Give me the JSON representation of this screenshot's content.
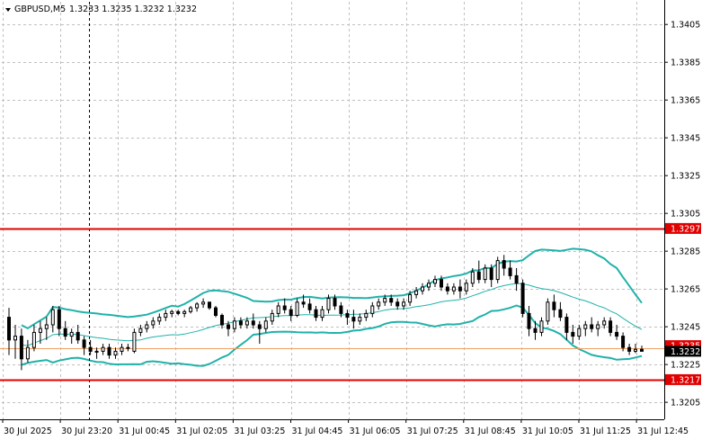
{
  "header": {
    "symbol": "GBPUSD,M5",
    "ohlc": "1.3233 1.3235 1.3232 1.3232"
  },
  "colors": {
    "background": "#ffffff",
    "grid": "#c0c0c0",
    "bands": "#20b2aa",
    "level_line": "#e00000",
    "price_line": "#f2a060",
    "candle": "#000000",
    "level_label_bg": "#e00000",
    "current_label_bg": "#000000"
  },
  "levels": [
    {
      "value": 1.3297,
      "label": "1.3297"
    },
    {
      "value": 1.3217,
      "label": "1.3217"
    }
  ],
  "current_price": {
    "value": 1.3232,
    "label": "1.3232"
  },
  "previous_price_label": "1.3235",
  "chart_data": {
    "type": "candlestick",
    "title": "GBPUSD,M5",
    "y_ticks": [
      "1.3405",
      "1.3385",
      "1.3365",
      "1.3345",
      "1.3325",
      "1.3305",
      "1.3285",
      "1.3265",
      "1.3245",
      "1.3225",
      "1.3205"
    ],
    "ylim": [
      1.3196,
      1.3417
    ],
    "x_ticks": [
      "30 Jul 2025",
      "30 Jul 23:20",
      "31 Jul 00:45",
      "31 Jul 02:05",
      "31 Jul 03:25",
      "31 Jul 04:45",
      "31 Jul 06:05",
      "31 Jul 07:25",
      "31 Jul 08:45",
      "31 Jul 10:05",
      "31 Jul 11:25",
      "31 Jul 12:45"
    ],
    "grid": true,
    "candles": [
      [
        1.325,
        1.3255,
        1.323,
        1.3238
      ],
      [
        1.3238,
        1.3246,
        1.3228,
        1.324
      ],
      [
        1.324,
        1.3244,
        1.3222,
        1.3228
      ],
      [
        1.3228,
        1.3238,
        1.3226,
        1.3234
      ],
      [
        1.3234,
        1.3246,
        1.3232,
        1.3242
      ],
      [
        1.3242,
        1.3248,
        1.3236,
        1.3244
      ],
      [
        1.3244,
        1.325,
        1.3238,
        1.3246
      ],
      [
        1.3246,
        1.3256,
        1.3242,
        1.3254
      ],
      [
        1.3254,
        1.3256,
        1.324,
        1.3244
      ],
      [
        1.3244,
        1.3248,
        1.3238,
        1.324
      ],
      [
        1.324,
        1.3244,
        1.3236,
        1.3242
      ],
      [
        1.3242,
        1.3246,
        1.3236,
        1.3238
      ],
      [
        1.3238,
        1.324,
        1.323,
        1.3234
      ],
      [
        1.3234,
        1.3238,
        1.323,
        1.3232
      ],
      [
        1.3232,
        1.3234,
        1.3228,
        1.3232
      ],
      [
        1.3232,
        1.3236,
        1.323,
        1.3234
      ],
      [
        1.3234,
        1.3236,
        1.3228,
        1.323
      ],
      [
        1.323,
        1.3234,
        1.3228,
        1.3232
      ],
      [
        1.3232,
        1.3236,
        1.323,
        1.3234
      ],
      [
        1.3234,
        1.3236,
        1.3232,
        1.3234
      ],
      [
        1.3232,
        1.3244,
        1.3231,
        1.3242
      ],
      [
        1.3242,
        1.3246,
        1.324,
        1.3244
      ],
      [
        1.3244,
        1.3248,
        1.3242,
        1.3246
      ],
      [
        1.3246,
        1.325,
        1.3244,
        1.3248
      ],
      [
        1.3248,
        1.3252,
        1.3246,
        1.325
      ],
      [
        1.325,
        1.3254,
        1.3248,
        1.3252
      ],
      [
        1.3252,
        1.3254,
        1.325,
        1.3253
      ],
      [
        1.3253,
        1.3254,
        1.3251,
        1.3252
      ],
      [
        1.3252,
        1.3254,
        1.325,
        1.3253
      ],
      [
        1.3253,
        1.3256,
        1.3252,
        1.3255
      ],
      [
        1.3255,
        1.3258,
        1.3253,
        1.3257
      ],
      [
        1.3257,
        1.326,
        1.3255,
        1.3258
      ],
      [
        1.3258,
        1.3258,
        1.3254,
        1.3255
      ],
      [
        1.3255,
        1.3256,
        1.325,
        1.3251
      ],
      [
        1.3251,
        1.3252,
        1.3244,
        1.3246
      ],
      [
        1.3246,
        1.3248,
        1.324,
        1.3244
      ],
      [
        1.3244,
        1.325,
        1.3242,
        1.3248
      ],
      [
        1.3248,
        1.325,
        1.3244,
        1.3246
      ],
      [
        1.3246,
        1.325,
        1.3244,
        1.3248
      ],
      [
        1.3248,
        1.3252,
        1.3244,
        1.3246
      ],
      [
        1.3246,
        1.3248,
        1.3236,
        1.3244
      ],
      [
        1.3244,
        1.325,
        1.3242,
        1.3248
      ],
      [
        1.3248,
        1.3254,
        1.3246,
        1.3252
      ],
      [
        1.3252,
        1.3258,
        1.325,
        1.3256
      ],
      [
        1.3256,
        1.326,
        1.3252,
        1.3254
      ],
      [
        1.3254,
        1.3256,
        1.3248,
        1.3251
      ],
      [
        1.3251,
        1.326,
        1.325,
        1.3258
      ],
      [
        1.3258,
        1.3262,
        1.3255,
        1.3257
      ],
      [
        1.3257,
        1.326,
        1.3252,
        1.3254
      ],
      [
        1.3254,
        1.3256,
        1.3248,
        1.325
      ],
      [
        1.325,
        1.3256,
        1.3248,
        1.3254
      ],
      [
        1.3254,
        1.3262,
        1.3252,
        1.326
      ],
      [
        1.326,
        1.3262,
        1.3254,
        1.3256
      ],
      [
        1.3256,
        1.3258,
        1.325,
        1.3252
      ],
      [
        1.3252,
        1.3254,
        1.3246,
        1.325
      ],
      [
        1.325,
        1.3254,
        1.3244,
        1.3248
      ],
      [
        1.3248,
        1.3252,
        1.3246,
        1.325
      ],
      [
        1.325,
        1.3254,
        1.3248,
        1.3252
      ],
      [
        1.3252,
        1.3258,
        1.325,
        1.3256
      ],
      [
        1.3256,
        1.326,
        1.3254,
        1.3258
      ],
      [
        1.3258,
        1.3262,
        1.3256,
        1.326
      ],
      [
        1.326,
        1.3262,
        1.3256,
        1.3258
      ],
      [
        1.3258,
        1.326,
        1.3254,
        1.3256
      ],
      [
        1.3256,
        1.326,
        1.3254,
        1.3258
      ],
      [
        1.3258,
        1.3264,
        1.3256,
        1.3262
      ],
      [
        1.3262,
        1.3266,
        1.326,
        1.3264
      ],
      [
        1.3264,
        1.3268,
        1.3262,
        1.3266
      ],
      [
        1.3266,
        1.327,
        1.3264,
        1.3268
      ],
      [
        1.3268,
        1.3272,
        1.3266,
        1.327
      ],
      [
        1.327,
        1.3272,
        1.3264,
        1.3266
      ],
      [
        1.3266,
        1.3268,
        1.3262,
        1.3264
      ],
      [
        1.3264,
        1.3268,
        1.3262,
        1.3266
      ],
      [
        1.3266,
        1.327,
        1.326,
        1.3264
      ],
      [
        1.3264,
        1.327,
        1.3262,
        1.3268
      ],
      [
        1.3268,
        1.3276,
        1.3266,
        1.3274
      ],
      [
        1.3274,
        1.328,
        1.3268,
        1.327
      ],
      [
        1.327,
        1.3278,
        1.3268,
        1.3276
      ],
      [
        1.3276,
        1.3278,
        1.3266,
        1.327
      ],
      [
        1.327,
        1.3282,
        1.3268,
        1.328
      ],
      [
        1.328,
        1.3283,
        1.3272,
        1.3276
      ],
      [
        1.3276,
        1.328,
        1.327,
        1.3272
      ],
      [
        1.3272,
        1.3276,
        1.3264,
        1.3268
      ],
      [
        1.3268,
        1.327,
        1.325,
        1.3252
      ],
      [
        1.3252,
        1.3256,
        1.324,
        1.3244
      ],
      [
        1.3244,
        1.3248,
        1.3238,
        1.3242
      ],
      [
        1.3242,
        1.325,
        1.324,
        1.3248
      ],
      [
        1.3248,
        1.326,
        1.3246,
        1.3258
      ],
      [
        1.3258,
        1.3262,
        1.325,
        1.3254
      ],
      [
        1.3254,
        1.3258,
        1.3248,
        1.325
      ],
      [
        1.325,
        1.3252,
        1.3238,
        1.3242
      ],
      [
        1.3242,
        1.3246,
        1.3236,
        1.324
      ],
      [
        1.324,
        1.3246,
        1.3238,
        1.3244
      ],
      [
        1.3244,
        1.3248,
        1.324,
        1.3246
      ],
      [
        1.3246,
        1.325,
        1.3242,
        1.3244
      ],
      [
        1.3244,
        1.3248,
        1.324,
        1.3246
      ],
      [
        1.3246,
        1.325,
        1.3244,
        1.3248
      ],
      [
        1.3248,
        1.325,
        1.324,
        1.3242
      ],
      [
        1.3242,
        1.3246,
        1.3238,
        1.324
      ],
      [
        1.324,
        1.3242,
        1.3232,
        1.3234
      ],
      [
        1.3234,
        1.3236,
        1.323,
        1.3232
      ],
      [
        1.3232,
        1.3236,
        1.3231,
        1.3233
      ],
      [
        1.3233,
        1.3235,
        1.3232,
        1.3232
      ]
    ]
  }
}
